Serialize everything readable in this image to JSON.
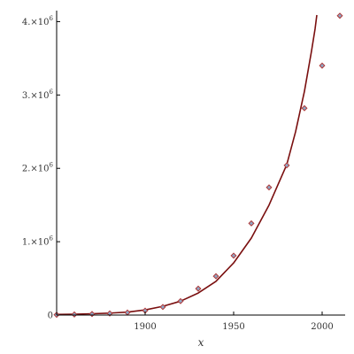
{
  "chart_data": {
    "type": "scatter",
    "xlabel": "x",
    "ylabel": "",
    "xlim": [
      1850,
      2013
    ],
    "ylim": [
      0,
      4150000
    ],
    "x_ticks": [
      {
        "value": 1900,
        "label": "1900"
      },
      {
        "value": 1950,
        "label": "1950"
      },
      {
        "value": 2000,
        "label": "2000"
      }
    ],
    "y_ticks": [
      {
        "value": 0,
        "mantissa": "0",
        "exponent": ""
      },
      {
        "value": 1000000,
        "mantissa": "1.×10",
        "exponent": "6"
      },
      {
        "value": 2000000,
        "mantissa": "2.×10",
        "exponent": "6"
      },
      {
        "value": 3000000,
        "mantissa": "3.×10",
        "exponent": "6"
      },
      {
        "value": 4000000,
        "mantissa": "4.×10",
        "exponent": "6"
      }
    ],
    "grid": false,
    "series": [
      {
        "kind": "points",
        "color": "#b03a3a",
        "points": [
          {
            "x": 1850,
            "y": 4000
          },
          {
            "x": 1860,
            "y": 8000
          },
          {
            "x": 1870,
            "y": 14000
          },
          {
            "x": 1880,
            "y": 22000
          },
          {
            "x": 1890,
            "y": 35000
          },
          {
            "x": 1900,
            "y": 60000
          },
          {
            "x": 1910,
            "y": 110000
          },
          {
            "x": 1920,
            "y": 190000
          },
          {
            "x": 1930,
            "y": 360000
          },
          {
            "x": 1940,
            "y": 530000
          },
          {
            "x": 1950,
            "y": 810000
          },
          {
            "x": 1960,
            "y": 1250000
          },
          {
            "x": 1970,
            "y": 1740000
          },
          {
            "x": 1980,
            "y": 2040000
          },
          {
            "x": 1990,
            "y": 2820000
          },
          {
            "x": 2000,
            "y": 3400000
          },
          {
            "x": 2010,
            "y": 4080000
          }
        ]
      },
      {
        "kind": "curve",
        "color": "#7a0f0f",
        "points": [
          {
            "x": 1850,
            "y": 8000
          },
          {
            "x": 1860,
            "y": 12000
          },
          {
            "x": 1870,
            "y": 18000
          },
          {
            "x": 1880,
            "y": 26000
          },
          {
            "x": 1890,
            "y": 40000
          },
          {
            "x": 1900,
            "y": 70000
          },
          {
            "x": 1910,
            "y": 120000
          },
          {
            "x": 1920,
            "y": 190000
          },
          {
            "x": 1930,
            "y": 300000
          },
          {
            "x": 1940,
            "y": 460000
          },
          {
            "x": 1950,
            "y": 710000
          },
          {
            "x": 1960,
            "y": 1050000
          },
          {
            "x": 1970,
            "y": 1500000
          },
          {
            "x": 1980,
            "y": 2050000
          },
          {
            "x": 1985,
            "y": 2500000
          },
          {
            "x": 1990,
            "y": 3050000
          },
          {
            "x": 1994,
            "y": 3600000
          },
          {
            "x": 1996,
            "y": 3900000
          },
          {
            "x": 1997,
            "y": 4090000
          }
        ]
      }
    ]
  }
}
